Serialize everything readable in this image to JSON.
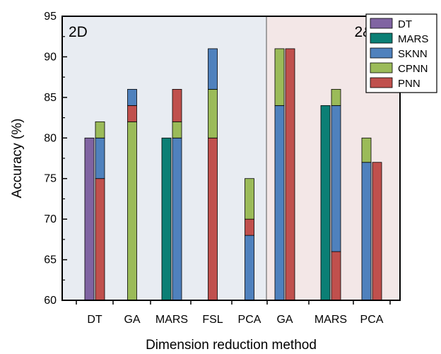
{
  "chart_data": {
    "type": "bar",
    "xlabel": "Dimension reduction method",
    "ylabel": "Accuracy (%)",
    "ylim": [
      60,
      95
    ],
    "yticks": [
      60,
      65,
      70,
      75,
      80,
      85,
      90,
      95
    ],
    "panels": [
      {
        "label": "2D",
        "background": "#e8ecf2"
      },
      {
        "label": "2&3D",
        "background": "#f3e7e7"
      }
    ],
    "colors": {
      "DT": "#8064a2",
      "MARS": "#0b7f75",
      "SKNN": "#4f81bd",
      "CPNN": "#9bbb59",
      "PNN": "#c0504d"
    },
    "legend": [
      "DT",
      "MARS",
      "SKNN",
      "CPNN",
      "PNN"
    ],
    "categories": [
      "DT",
      "GA",
      "MARS",
      "FSL",
      "PCA",
      "GA",
      "MARS",
      "PCA"
    ],
    "groups": [
      {
        "category": "DT",
        "panel": "2D",
        "bars": [
          {
            "stack": [
              {
                "series": "DT",
                "value": 80
              }
            ]
          },
          {
            "stack": [
              {
                "series": "PNN",
                "value": 75
              },
              {
                "series": "SKNN",
                "value": 80
              },
              {
                "series": "CPNN",
                "value": 82
              }
            ]
          }
        ]
      },
      {
        "category": "GA",
        "panel": "2D",
        "bars": [
          {
            "stack": [
              {
                "series": "CPNN",
                "value": 82
              },
              {
                "series": "PNN",
                "value": 84
              },
              {
                "series": "SKNN",
                "value": 86
              }
            ]
          }
        ]
      },
      {
        "category": "MARS",
        "panel": "2D",
        "bars": [
          {
            "stack": [
              {
                "series": "MARS",
                "value": 80
              }
            ]
          },
          {
            "stack": [
              {
                "series": "SKNN",
                "value": 80
              },
              {
                "series": "CPNN",
                "value": 82
              },
              {
                "series": "PNN",
                "value": 86
              }
            ]
          }
        ]
      },
      {
        "category": "FSL",
        "panel": "2D",
        "bars": [
          {
            "stack": [
              {
                "series": "PNN",
                "value": 80
              },
              {
                "series": "CPNN",
                "value": 86
              },
              {
                "series": "SKNN",
                "value": 91
              }
            ]
          }
        ]
      },
      {
        "category": "PCA",
        "panel": "2D",
        "bars": [
          {
            "stack": [
              {
                "series": "SKNN",
                "value": 68
              },
              {
                "series": "PNN",
                "value": 70
              },
              {
                "series": "CPNN",
                "value": 75
              }
            ]
          }
        ]
      },
      {
        "category": "GA",
        "panel": "2&3D",
        "bars": [
          {
            "stack": [
              {
                "series": "SKNN",
                "value": 84
              },
              {
                "series": "CPNN",
                "value": 91
              }
            ]
          },
          {
            "stack": [
              {
                "series": "PNN",
                "value": 91
              }
            ]
          }
        ]
      },
      {
        "category": "MARS",
        "panel": "2&3D",
        "bars": [
          {
            "stack": [
              {
                "series": "MARS",
                "value": 84
              }
            ]
          },
          {
            "stack": [
              {
                "series": "PNN",
                "value": 66
              },
              {
                "series": "SKNN",
                "value": 84
              },
              {
                "series": "CPNN",
                "value": 86
              }
            ]
          }
        ]
      },
      {
        "category": "PCA",
        "panel": "2&3D",
        "bars": [
          {
            "stack": [
              {
                "series": "SKNN",
                "value": 77
              },
              {
                "series": "CPNN",
                "value": 80
              }
            ]
          },
          {
            "stack": [
              {
                "series": "PNN",
                "value": 77
              }
            ]
          }
        ]
      }
    ]
  }
}
